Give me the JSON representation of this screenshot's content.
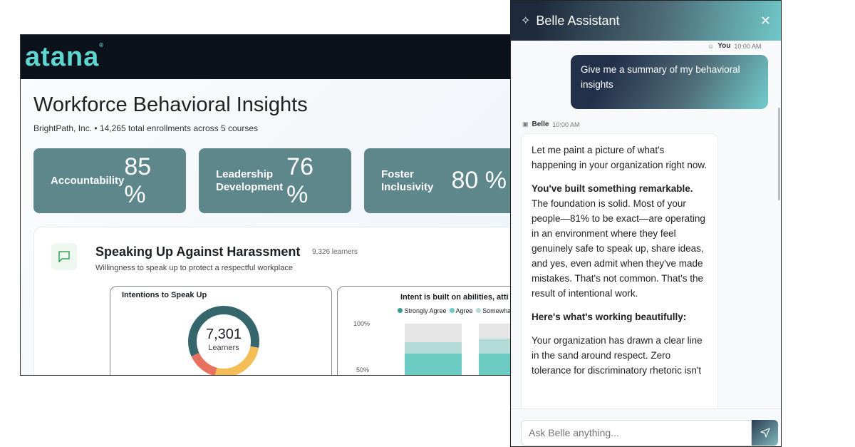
{
  "dashboard": {
    "logo": "atana",
    "title": "Workforce Behavioral Insights",
    "subtitle": "BrightPath, Inc. • 14,265 total enrollments across 5 courses",
    "kpis": [
      {
        "label": "Accountability",
        "value": "85 %"
      },
      {
        "label": "Leadership Development",
        "value": "76 %"
      },
      {
        "label": "Foster Inclusivity",
        "value": "80 %"
      }
    ],
    "section": {
      "title": "Speaking Up Against Harassment",
      "learners": "9,326 learners",
      "description": "Willingness to speak up to protect a respectful workplace",
      "donut": {
        "title": "Intentions to Speak Up",
        "value": "7,301",
        "unit": "Learners",
        "segments": [
          {
            "fraction": 0.64,
            "color": "#35666b"
          },
          {
            "fraction": 0.28,
            "color": "#f2be55"
          },
          {
            "fraction": 0.15,
            "color": "#e8705f"
          }
        ]
      },
      "bars": {
        "title": "Intent is built on abilities, atti",
        "legend": [
          "Strongly Agree",
          "Agree",
          "Somewha"
        ],
        "colors": [
          "#6cccc4",
          "#b3dcd8",
          "#e6e6e6"
        ],
        "yticks": [
          "100%",
          "50%"
        ],
        "stacks": [
          [
            68,
            12,
            20
          ],
          [
            68,
            16,
            16
          ]
        ]
      }
    }
  },
  "chat": {
    "title": "Belle Assistant",
    "user_name": "You",
    "user_time": "10:00 AM",
    "user_message": "Give me a summary of my behavioral insights",
    "bot_name": "Belle",
    "bot_time": "10:00 AM",
    "bot_p1": "Let me paint a picture of what's happening in your organization right now.",
    "bot_h1": "You've built something remarkable.",
    "bot_p2": "The foundation is solid. Most of your people—81% to be exact—are operating in an environment where they feel genuinely safe to speak up, share ideas, and yes, even admit when they've made mistakes. That's not common. That's the result of intentional work.",
    "bot_h2": "Here's what's working beautifully:",
    "bot_p3": "Your organization has drawn a clear line in the sand around respect. Zero tolerance for discriminatory rhetoric isn't",
    "input_placeholder": "Ask Belle anything..."
  }
}
